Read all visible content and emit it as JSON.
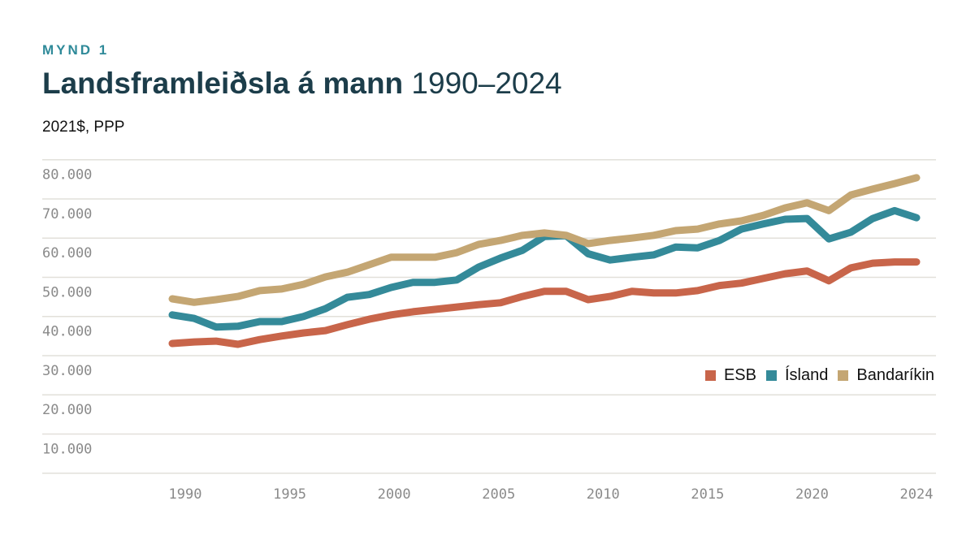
{
  "kicker": "MYND 1",
  "title_bold": "Landsframleiðsla á mann",
  "title_rest": " 1990–2024",
  "unit": "2021$, PPP",
  "chart_data": {
    "type": "line",
    "x": [
      1990,
      1991,
      1992,
      1993,
      1994,
      1995,
      1996,
      1997,
      1998,
      1999,
      2000,
      2001,
      2002,
      2003,
      2004,
      2005,
      2006,
      2007,
      2008,
      2009,
      2010,
      2011,
      2012,
      2013,
      2014,
      2015,
      2016,
      2017,
      2018,
      2019,
      2020,
      2021,
      2022,
      2023,
      2024
    ],
    "ylim": [
      0,
      80000
    ],
    "yticks": [
      10000,
      20000,
      30000,
      40000,
      50000,
      60000,
      70000,
      80000
    ],
    "ytick_labels": [
      "10.000",
      "20.000",
      "30.000",
      "40.000",
      "50.000",
      "60.000",
      "70.000",
      "80.000"
    ],
    "xtick_labels": [
      "1990",
      "1995",
      "2000",
      "2005",
      "2010",
      "2015",
      "2020",
      "2024"
    ],
    "grid": true,
    "legend_placement": "right",
    "series": [
      {
        "name": "ESB",
        "color": "#c8654a",
        "values": [
          33100,
          33500,
          33700,
          32900,
          34100,
          35000,
          35800,
          36400,
          37900,
          39300,
          40400,
          41200,
          41800,
          42400,
          43000,
          43500,
          45100,
          46400,
          46400,
          44300,
          45100,
          46400,
          46000,
          46000,
          46600,
          47900,
          48500,
          49700,
          50900,
          51600,
          49100,
          52400,
          53600,
          53900,
          53900
        ]
      },
      {
        "name": "Ísland",
        "color": "#348a99",
        "values": [
          40400,
          39500,
          37300,
          37500,
          38700,
          38700,
          40000,
          42000,
          44900,
          45600,
          47400,
          48700,
          48700,
          49300,
          52600,
          54900,
          56900,
          60400,
          60600,
          56000,
          54400,
          55100,
          55700,
          57700,
          57500,
          59400,
          62300,
          63600,
          64800,
          65000,
          59800,
          61500,
          65000,
          67000,
          65200
        ]
      },
      {
        "name": "Bandaríkin",
        "color": "#c4a673",
        "values": [
          44500,
          43600,
          44300,
          45100,
          46600,
          47000,
          48200,
          50100,
          51300,
          53200,
          55100,
          55100,
          55100,
          56300,
          58400,
          59400,
          60700,
          61300,
          60700,
          58600,
          59400,
          60000,
          60700,
          61900,
          62300,
          63600,
          64400,
          65800,
          67700,
          69000,
          67000,
          71000,
          72500,
          73900,
          75400
        ]
      }
    ]
  }
}
